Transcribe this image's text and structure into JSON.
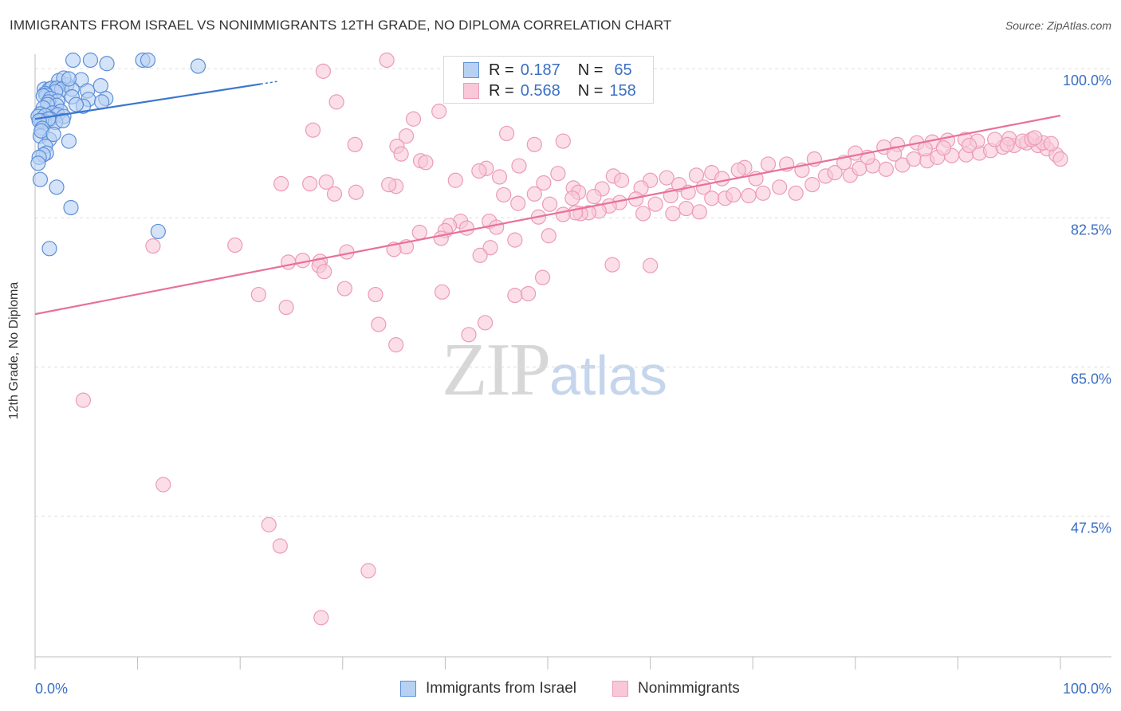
{
  "header": {
    "title": "IMMIGRANTS FROM ISRAEL VS NONIMMIGRANTS 12TH GRADE, NO DIPLOMA CORRELATION CHART",
    "source": "Source: ZipAtlas.com"
  },
  "watermark": {
    "zip": "ZIP",
    "atlas": "atlas"
  },
  "legend": {
    "series1": {
      "r_label": "R =",
      "r_value": "0.187",
      "n_label": "N =",
      "n_value": "65"
    },
    "series2": {
      "r_label": "R =",
      "r_value": "0.568",
      "n_label": "N =",
      "n_value": "158"
    }
  },
  "colors": {
    "blue_fill": "#b7d1f3",
    "blue_stroke": "#5b8fd9",
    "blue_line": "#3a76d0",
    "pink_fill": "#f8c8d8",
    "pink_stroke": "#ec9bb7",
    "pink_line": "#e8719a",
    "axis_text": "#3a6fc4",
    "grid": "#dedede"
  },
  "chart_data": {
    "type": "scatter",
    "title": "IMMIGRANTS FROM ISRAEL VS NONIMMIGRANTS 12TH GRADE, NO DIPLOMA CORRELATION CHART",
    "xlabel": "",
    "ylabel": "12th Grade, No Diploma",
    "xlim": [
      0,
      100
    ],
    "ylim": [
      31.0,
      101.7
    ],
    "x_tick_labels": [
      "0.0%",
      "100.0%"
    ],
    "y_ticks": [
      47.5,
      65.0,
      82.5,
      100.0
    ],
    "y_tick_labels": [
      "47.5%",
      "65.0%",
      "82.5%",
      "100.0%"
    ],
    "grid": "horizontal dashed",
    "legend_position": "bottom",
    "series": [
      {
        "name": "Immigrants from Israel",
        "r": 0.187,
        "n": 65,
        "trendline": {
          "x": [
            0,
            22
          ],
          "y": [
            94.1,
            98.2
          ]
        },
        "points": [
          [
            3.7,
            101.0
          ],
          [
            5.4,
            101.0
          ],
          [
            10.5,
            101.0
          ],
          [
            11.0,
            101.0
          ],
          [
            7.0,
            100.6
          ],
          [
            15.9,
            100.3
          ],
          [
            2.3,
            98.6
          ],
          [
            3.1,
            98.1
          ],
          [
            4.5,
            98.7
          ],
          [
            2.8,
            98.9
          ],
          [
            0.9,
            97.6
          ],
          [
            1.4,
            97.6
          ],
          [
            1.6,
            97.7
          ],
          [
            2.1,
            97.7
          ],
          [
            2.6,
            97.6
          ],
          [
            2.0,
            97.3
          ],
          [
            3.6,
            97.6
          ],
          [
            5.1,
            97.4
          ],
          [
            6.4,
            98.0
          ],
          [
            3.3,
            98.8
          ],
          [
            1.0,
            97.1
          ],
          [
            1.1,
            96.9
          ],
          [
            0.8,
            96.8
          ],
          [
            1.5,
            96.5
          ],
          [
            3.6,
            96.7
          ],
          [
            6.9,
            96.5
          ],
          [
            2.2,
            96.2
          ],
          [
            1.3,
            96.1
          ],
          [
            5.2,
            96.4
          ],
          [
            2.1,
            95.7
          ],
          [
            1.2,
            95.8
          ],
          [
            4.7,
            95.6
          ],
          [
            0.8,
            95.4
          ],
          [
            2.5,
            95.0
          ],
          [
            1.7,
            94.8
          ],
          [
            2.2,
            94.6
          ],
          [
            0.5,
            94.7
          ],
          [
            0.3,
            94.4
          ],
          [
            1.0,
            94.5
          ],
          [
            2.8,
            94.4
          ],
          [
            1.5,
            94.1
          ],
          [
            0.9,
            93.8
          ],
          [
            0.6,
            93.9
          ],
          [
            2.0,
            93.7
          ],
          [
            6.5,
            96.1
          ],
          [
            1.3,
            94.1
          ],
          [
            0.4,
            93.9
          ],
          [
            0.7,
            93.0
          ],
          [
            0.5,
            92.1
          ],
          [
            3.3,
            91.5
          ],
          [
            1.4,
            91.7
          ],
          [
            1.0,
            90.9
          ],
          [
            1.1,
            90.1
          ],
          [
            0.8,
            89.9
          ],
          [
            0.4,
            89.6
          ],
          [
            0.3,
            88.9
          ],
          [
            0.5,
            87.0
          ],
          [
            2.1,
            86.1
          ],
          [
            3.5,
            83.7
          ],
          [
            12.0,
            80.9
          ],
          [
            1.4,
            78.9
          ],
          [
            2.7,
            93.9
          ],
          [
            4.0,
            95.8
          ],
          [
            0.6,
            92.7
          ],
          [
            1.8,
            92.3
          ]
        ]
      },
      {
        "name": "Nonimmigrants",
        "r": 0.568,
        "n": 158,
        "trendline": {
          "x": [
            0,
            100
          ],
          "y": [
            71.2,
            94.5
          ]
        },
        "points": [
          [
            34.3,
            101.0
          ],
          [
            28.1,
            99.7
          ],
          [
            29.4,
            96.1
          ],
          [
            39.4,
            95.0
          ],
          [
            36.9,
            94.1
          ],
          [
            27.1,
            92.8
          ],
          [
            31.2,
            91.1
          ],
          [
            36.2,
            92.1
          ],
          [
            46.0,
            92.4
          ],
          [
            51.5,
            91.5
          ],
          [
            48.7,
            91.1
          ],
          [
            35.3,
            90.9
          ],
          [
            35.7,
            90.0
          ],
          [
            37.6,
            89.2
          ],
          [
            38.1,
            89.0
          ],
          [
            44.0,
            88.3
          ],
          [
            47.2,
            88.6
          ],
          [
            43.3,
            88.0
          ],
          [
            51.0,
            87.7
          ],
          [
            45.3,
            87.3
          ],
          [
            41.0,
            86.9
          ],
          [
            49.6,
            86.6
          ],
          [
            52.5,
            86.0
          ],
          [
            26.8,
            86.5
          ],
          [
            28.4,
            86.7
          ],
          [
            35.2,
            86.2
          ],
          [
            34.5,
            86.4
          ],
          [
            31.3,
            85.5
          ],
          [
            29.2,
            85.3
          ],
          [
            24.0,
            86.5
          ],
          [
            56.4,
            87.4
          ],
          [
            57.2,
            86.9
          ],
          [
            60.0,
            86.9
          ],
          [
            61.6,
            87.2
          ],
          [
            62.8,
            86.4
          ],
          [
            59.1,
            86.0
          ],
          [
            55.3,
            85.9
          ],
          [
            53.0,
            85.5
          ],
          [
            54.5,
            85.0
          ],
          [
            52.4,
            84.8
          ],
          [
            50.2,
            84.1
          ],
          [
            47.1,
            84.2
          ],
          [
            45.7,
            85.2
          ],
          [
            48.7,
            85.3
          ],
          [
            64.5,
            87.5
          ],
          [
            66.0,
            87.8
          ],
          [
            67.0,
            87.1
          ],
          [
            69.2,
            88.4
          ],
          [
            68.6,
            88.1
          ],
          [
            65.2,
            86.1
          ],
          [
            63.7,
            85.5
          ],
          [
            62.0,
            85.1
          ],
          [
            58.6,
            84.7
          ],
          [
            57.0,
            84.3
          ],
          [
            56.0,
            83.9
          ],
          [
            55.0,
            83.3
          ],
          [
            54.0,
            83.1
          ],
          [
            53.2,
            83.0
          ],
          [
            52.7,
            83.1
          ],
          [
            51.5,
            82.9
          ],
          [
            49.1,
            82.6
          ],
          [
            44.3,
            82.1
          ],
          [
            41.5,
            82.1
          ],
          [
            40.4,
            81.6
          ],
          [
            40.0,
            81.0
          ],
          [
            37.5,
            80.8
          ],
          [
            36.2,
            79.1
          ],
          [
            35.0,
            78.8
          ],
          [
            30.4,
            78.5
          ],
          [
            27.8,
            77.4
          ],
          [
            26.1,
            77.5
          ],
          [
            24.7,
            77.3
          ],
          [
            30.2,
            74.2
          ],
          [
            33.2,
            73.5
          ],
          [
            27.7,
            76.9
          ],
          [
            28.2,
            76.2
          ],
          [
            39.6,
            80.1
          ],
          [
            42.1,
            81.3
          ],
          [
            45.0,
            81.4
          ],
          [
            44.4,
            79.0
          ],
          [
            43.4,
            78.1
          ],
          [
            46.8,
            79.9
          ],
          [
            50.1,
            80.4
          ],
          [
            59.3,
            83.0
          ],
          [
            60.5,
            84.1
          ],
          [
            62.2,
            83.0
          ],
          [
            63.5,
            83.6
          ],
          [
            64.8,
            83.2
          ],
          [
            66.0,
            84.8
          ],
          [
            67.3,
            84.8
          ],
          [
            68.1,
            85.2
          ],
          [
            69.6,
            85.1
          ],
          [
            71.0,
            85.4
          ],
          [
            72.6,
            86.1
          ],
          [
            74.2,
            85.4
          ],
          [
            75.8,
            86.4
          ],
          [
            77.1,
            87.4
          ],
          [
            78.0,
            87.8
          ],
          [
            79.5,
            87.5
          ],
          [
            80.4,
            88.3
          ],
          [
            81.7,
            88.6
          ],
          [
            83.0,
            88.2
          ],
          [
            84.6,
            88.7
          ],
          [
            85.7,
            89.4
          ],
          [
            87.0,
            89.2
          ],
          [
            88.0,
            89.6
          ],
          [
            89.4,
            89.8
          ],
          [
            90.8,
            89.9
          ],
          [
            92.1,
            90.1
          ],
          [
            93.2,
            90.4
          ],
          [
            94.4,
            90.8
          ],
          [
            95.5,
            91.0
          ],
          [
            96.7,
            91.3
          ],
          [
            97.8,
            91.0
          ],
          [
            98.7,
            90.6
          ],
          [
            99.6,
            89.9
          ],
          [
            100.0,
            89.4
          ],
          [
            73.3,
            88.8
          ],
          [
            76.0,
            89.4
          ],
          [
            78.9,
            89.0
          ],
          [
            81.2,
            89.6
          ],
          [
            82.8,
            90.8
          ],
          [
            84.1,
            91.1
          ],
          [
            86.0,
            91.3
          ],
          [
            87.5,
            91.4
          ],
          [
            89.0,
            91.6
          ],
          [
            90.7,
            91.7
          ],
          [
            91.9,
            91.5
          ],
          [
            93.6,
            91.7
          ],
          [
            95.0,
            91.8
          ],
          [
            96.3,
            91.5
          ],
          [
            97.2,
            91.7
          ],
          [
            98.3,
            91.3
          ],
          [
            99.1,
            91.2
          ],
          [
            80.0,
            90.1
          ],
          [
            83.8,
            90.0
          ],
          [
            86.8,
            90.6
          ],
          [
            88.6,
            90.7
          ],
          [
            91.1,
            91.0
          ],
          [
            94.8,
            91.1
          ],
          [
            97.5,
            91.9
          ],
          [
            71.5,
            88.8
          ],
          [
            70.3,
            87.1
          ],
          [
            74.8,
            88.1
          ],
          [
            60.0,
            76.9
          ],
          [
            56.3,
            77.0
          ],
          [
            49.5,
            75.5
          ],
          [
            39.7,
            73.8
          ],
          [
            46.8,
            73.4
          ],
          [
            43.9,
            70.2
          ],
          [
            33.5,
            70.0
          ],
          [
            35.2,
            67.6
          ],
          [
            48.1,
            73.6
          ],
          [
            42.3,
            68.8
          ],
          [
            4.7,
            61.1
          ],
          [
            12.5,
            51.2
          ],
          [
            22.8,
            46.5
          ],
          [
            23.9,
            44.0
          ],
          [
            32.5,
            41.1
          ],
          [
            27.9,
            35.6
          ],
          [
            11.5,
            79.2
          ],
          [
            19.5,
            79.3
          ],
          [
            21.8,
            73.5
          ],
          [
            24.5,
            72.0
          ]
        ]
      }
    ]
  }
}
